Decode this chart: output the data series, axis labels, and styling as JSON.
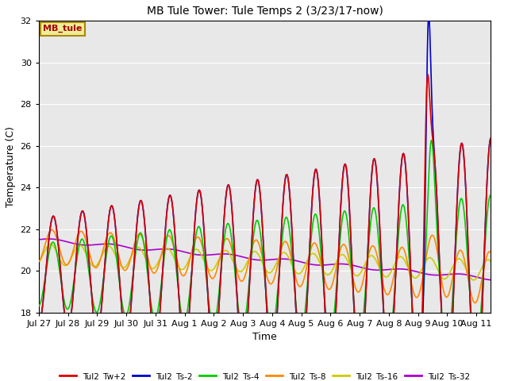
{
  "title": "MB Tule Tower: Tule Temps 2 (3/23/17-now)",
  "xlabel": "Time",
  "ylabel": "Temperature (C)",
  "ylim": [
    18,
    32
  ],
  "xlim": [
    0,
    15.5
  ],
  "background_color": "#ffffff",
  "plot_bg_color": "#e8e8e8",
  "series": {
    "Tul2_Tw+2": {
      "color": "#dd0000",
      "lw": 1.2
    },
    "Tul2_Ts-2": {
      "color": "#0000cc",
      "lw": 1.2
    },
    "Tul2_Ts-4": {
      "color": "#00cc00",
      "lw": 1.2
    },
    "Tul2_Ts-8": {
      "color": "#ff8800",
      "lw": 1.2
    },
    "Tul2_Ts-16": {
      "color": "#cccc00",
      "lw": 1.2
    },
    "Tul2_Ts-32": {
      "color": "#aa00cc",
      "lw": 1.2
    }
  },
  "xtick_labels": [
    "Jul 27",
    "Jul 28",
    "Jul 29",
    "Jul 30",
    "Jul 31",
    "Aug 1",
    "Aug 2",
    "Aug 3",
    "Aug 4",
    "Aug 5",
    "Aug 6",
    "Aug 7",
    "Aug 8",
    "Aug 9",
    "Aug 10",
    "Aug 11"
  ],
  "xtick_positions": [
    0,
    1,
    2,
    3,
    4,
    5,
    6,
    7,
    8,
    9,
    10,
    11,
    12,
    13,
    14,
    15
  ],
  "annotation_text": "MB_tule",
  "annotation_color": "#aa0000",
  "annotation_bg": "#eeee99",
  "annotation_border": "#aa8800",
  "figsize": [
    6.4,
    4.8
  ],
  "dpi": 100
}
